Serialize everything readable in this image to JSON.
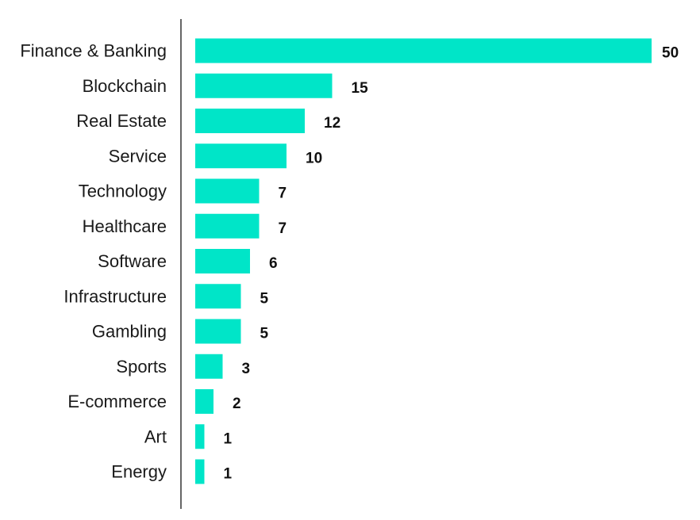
{
  "chart_data": {
    "type": "bar",
    "orientation": "horizontal",
    "categories": [
      "Finance & Banking",
      "Blockchain",
      "Real Estate",
      "Service",
      "Technology",
      "Healthcare",
      "Software",
      "Infrastructure",
      "Gambling",
      "Sports",
      "E-commerce",
      "Art",
      "Energy"
    ],
    "values": [
      50,
      15,
      12,
      10,
      7,
      7,
      6,
      5,
      5,
      3,
      2,
      1,
      1
    ],
    "value_labels": [
      "50",
      "15",
      "12",
      "10",
      "7",
      "7",
      "6",
      "5",
      "5",
      "3",
      "2",
      "1",
      "1"
    ],
    "bar_color": "#00e5c8",
    "axis_color": "#333333",
    "xlim": [
      0,
      50
    ],
    "grid": false,
    "title": "",
    "xlabel": "",
    "ylabel": ""
  }
}
